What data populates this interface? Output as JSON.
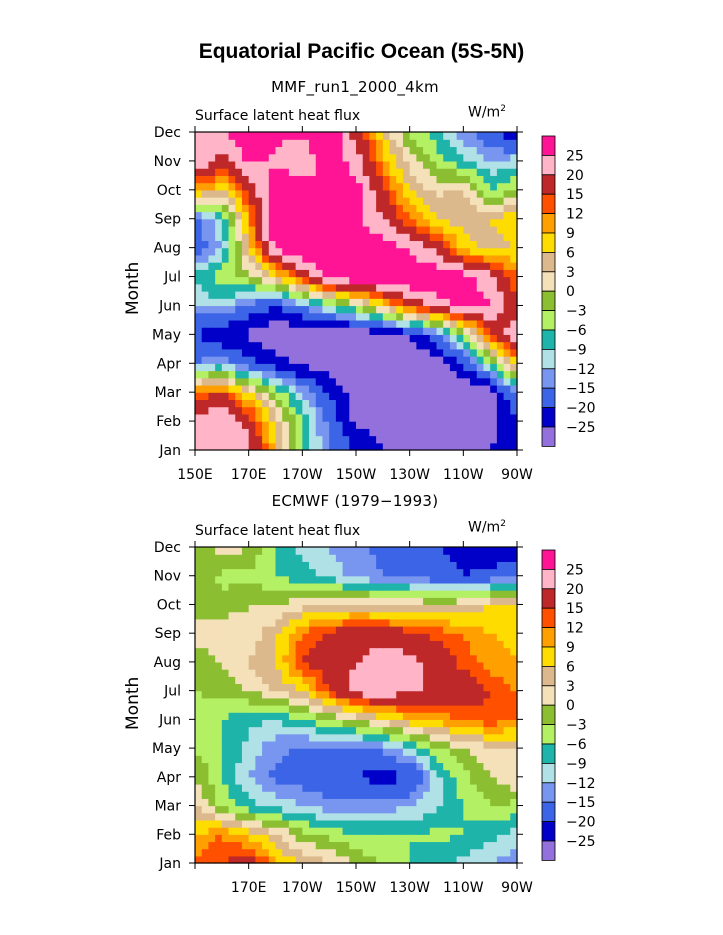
{
  "title": "Equatorial Pacific Ocean (5S-5N)",
  "palette": [
    "#9370db",
    "#0000c8",
    "#3c64e6",
    "#7896f0",
    "#afe1e6",
    "#1eb4aa",
    "#b4f064",
    "#8cbe32",
    "#f5e1b9",
    "#dcb98c",
    "#ffdc00",
    "#ffa000",
    "#ff5000",
    "#be2828",
    "#ffb4c8",
    "#ff1496"
  ],
  "legend_labels": [
    "25",
    "20",
    "15",
    "12",
    "9",
    "6",
    "3",
    "0",
    "−3",
    "−6",
    "−9",
    "−12",
    "−15",
    "−20",
    "−25"
  ],
  "y_ticks": [
    "Dec",
    "Nov",
    "Oct",
    "Sep",
    "Aug",
    "Jul",
    "Jun",
    "May",
    "Apr",
    "Mar",
    "Feb",
    "Jan"
  ],
  "ylabel": "Month",
  "panels": [
    {
      "subtitle": "MMF_run1_2000_4km",
      "label": "Surface latent heat flux",
      "units": "W/m",
      "units_sup": "2",
      "x_ticks": [
        "150E",
        "170E",
        "170W",
        "150W",
        "130W",
        "110W",
        "90W"
      ]
    },
    {
      "subtitle": "ECMWF (1979−1993)",
      "label": "Surface latent heat flux",
      "units": "W/m",
      "units_sup": "2",
      "x_ticks": [
        "",
        "170E",
        "170W",
        "150W",
        "130W",
        "110W",
        "90W"
      ]
    }
  ],
  "chart_data": [
    {
      "type": "heatmap",
      "title": "MMF_run1_2000_4km",
      "panel_label": "Surface latent heat flux",
      "units": "W/m2",
      "xlabel": "",
      "ylabel": "Month",
      "x_range_deg_east": [
        150,
        270
      ],
      "x_tick_labels": [
        "150E",
        "170E",
        "170W",
        "150W",
        "130W",
        "110W",
        "90W"
      ],
      "y_categories": [
        "Jan",
        "Feb",
        "Mar",
        "Apr",
        "May",
        "Jun",
        "Jul",
        "Aug",
        "Sep",
        "Oct",
        "Nov",
        "Dec"
      ],
      "contour_levels": [
        -25,
        -20,
        -15,
        -12,
        -9,
        -6,
        -3,
        0,
        3,
        6,
        9,
        12,
        15,
        20,
        25
      ],
      "lon": [
        150,
        160,
        170,
        180,
        190,
        200,
        210,
        220,
        230,
        240,
        250,
        260,
        270
      ],
      "values": [
        [
          20,
          25,
          22,
          8,
          -6,
          -15,
          -20,
          -25,
          -25,
          -25,
          -25,
          -25,
          -20
        ],
        [
          22,
          25,
          18,
          5,
          -6,
          -16,
          -26,
          -28,
          -28,
          -28,
          -28,
          -28,
          -20
        ],
        [
          12,
          15,
          6,
          -3,
          -12,
          -20,
          -28,
          -30,
          -30,
          -30,
          -30,
          -28,
          -14
        ],
        [
          -15,
          -12,
          -18,
          -22,
          -26,
          -28,
          -30,
          -30,
          -30,
          -28,
          -20,
          -6,
          8
        ],
        [
          -20,
          -25,
          -26,
          -30,
          -30,
          -30,
          -30,
          -28,
          -24,
          -16,
          -4,
          14,
          24
        ],
        [
          -12,
          -10,
          -16,
          -20,
          -14,
          -8,
          -2,
          6,
          16,
          22,
          28,
          25,
          15
        ],
        [
          -8,
          -4,
          -2,
          6,
          16,
          26,
          30,
          30,
          30,
          30,
          28,
          22,
          12
        ],
        [
          -18,
          -12,
          6,
          26,
          30,
          30,
          30,
          28,
          24,
          18,
          8,
          4,
          6
        ],
        [
          -16,
          -10,
          10,
          30,
          30,
          30,
          26,
          20,
          12,
          6,
          4,
          6,
          9
        ],
        [
          10,
          6,
          16,
          30,
          28,
          24,
          28,
          16,
          6,
          2,
          4,
          -6,
          -3
        ],
        [
          25,
          18,
          26,
          24,
          20,
          30,
          22,
          10,
          2,
          -4,
          -8,
          -12,
          -10
        ],
        [
          20,
          25,
          28,
          26,
          26,
          30,
          18,
          6,
          -4,
          -8,
          -14,
          -18,
          -25
        ]
      ]
    },
    {
      "type": "heatmap",
      "title": "ECMWF (1979−1993)",
      "panel_label": "Surface latent heat flux",
      "units": "W/m2",
      "xlabel": "",
      "ylabel": "Month",
      "x_range_deg_east": [
        150,
        270
      ],
      "x_tick_labels": [
        "170E",
        "170W",
        "150W",
        "130W",
        "110W",
        "90W"
      ],
      "y_categories": [
        "Jan",
        "Feb",
        "Mar",
        "Apr",
        "May",
        "Jun",
        "Jul",
        "Aug",
        "Sep",
        "Oct",
        "Nov",
        "Dec"
      ],
      "contour_levels": [
        -25,
        -20,
        -15,
        -12,
        -9,
        -6,
        -3,
        0,
        3,
        6,
        9,
        12,
        15,
        20,
        25
      ],
      "lon": [
        150,
        160,
        170,
        180,
        190,
        200,
        210,
        220,
        230,
        240,
        250,
        260,
        270
      ],
      "values": [
        [
          12,
          15,
          18,
          10,
          6,
          3,
          0,
          -4,
          -6,
          -8,
          -10,
          -12,
          -14
        ],
        [
          9,
          12,
          8,
          4,
          -2,
          -4,
          -6,
          -6,
          -6,
          -5,
          -6,
          -8,
          -10
        ],
        [
          3,
          -4,
          -8,
          -10,
          -12,
          -14,
          -14,
          -14,
          -12,
          -10,
          -6,
          -3,
          -4
        ],
        [
          0,
          -6,
          -12,
          -16,
          -17,
          -18,
          -20,
          -22,
          -20,
          -10,
          -4,
          0,
          3
        ],
        [
          -3,
          -6,
          -10,
          -14,
          -16,
          -16,
          -16,
          -14,
          -10,
          -4,
          0,
          2,
          3
        ],
        [
          -5,
          -6,
          -8,
          -9,
          -6,
          -3,
          0,
          4,
          8,
          10,
          12,
          14,
          12
        ],
        [
          -3,
          -2,
          0,
          3,
          6,
          15,
          22,
          24,
          20,
          20,
          18,
          15,
          12
        ],
        [
          -3,
          0,
          3,
          6,
          15,
          18,
          20,
          22,
          22,
          18,
          14,
          10,
          9
        ],
        [
          3,
          3,
          1,
          5,
          12,
          16,
          18,
          18,
          16,
          14,
          12,
          9,
          8
        ],
        [
          -2,
          -2,
          0,
          0,
          2,
          3,
          4,
          3,
          3,
          2,
          3,
          6,
          8
        ],
        [
          0,
          -4,
          -4,
          -6,
          -8,
          -10,
          -13,
          -15,
          -16,
          -18,
          -20,
          -18,
          -15
        ],
        [
          -4,
          2,
          0,
          -6,
          -10,
          -12,
          -14,
          -16,
          -18,
          -20,
          -22,
          -25,
          -25
        ]
      ]
    }
  ]
}
